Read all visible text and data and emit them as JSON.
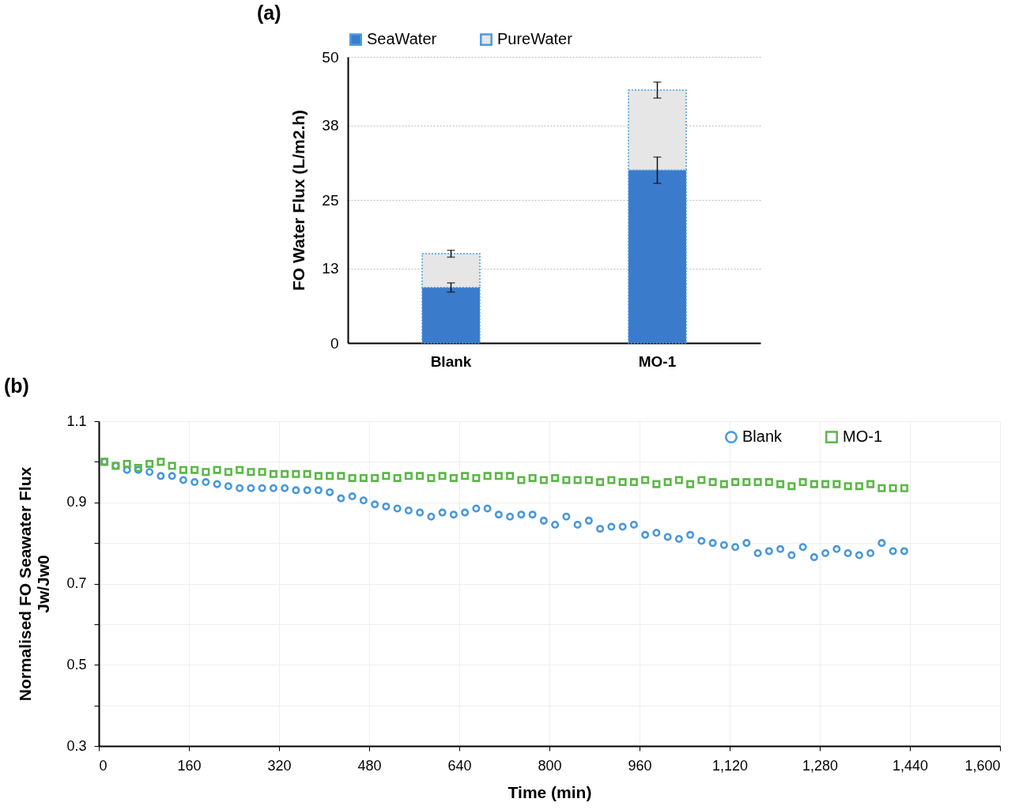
{
  "chart_data": [
    {
      "type": "bar",
      "title": "(a)",
      "ylabel": "FO Water Flux (L/m2.h)",
      "categories": [
        "Blank",
        "MO-1"
      ],
      "stacked": true,
      "legend": "top",
      "grid": "y",
      "ylim": [
        0,
        50
      ],
      "yticks": [
        0,
        13,
        25,
        38,
        50
      ],
      "series": [
        {
          "name": "SeaWater",
          "color": "#3b7bcb",
          "values": [
            9.7,
            30.2
          ],
          "errors": [
            0.8,
            2.3
          ]
        },
        {
          "name": "PureWater",
          "color": "#e6e6e6",
          "values": [
            5.9,
            14.0
          ],
          "errors": [
            0.6,
            1.4
          ]
        }
      ]
    },
    {
      "type": "scatter",
      "title": "(b)",
      "xlabel": "Time (min)",
      "ylabel": "Normalised FO Seawater Flux\nJw/Jw0",
      "legend": "top right",
      "grid": true,
      "xlim": [
        0,
        1600
      ],
      "xticks": [
        0,
        160,
        320,
        480,
        640,
        800,
        960,
        {
          "value": 1120,
          "label": "1,120"
        },
        {
          "value": 1280,
          "label": "1,280"
        },
        {
          "value": 1440,
          "label": "1,440"
        },
        {
          "value": 1600,
          "label": "1,600"
        }
      ],
      "ylim": [
        0.3,
        1.1
      ],
      "yticks": [
        0.3,
        {
          "value": 0.4,
          "label": null
        },
        0.5,
        {
          "value": 0.6,
          "label": null
        },
        0.7,
        {
          "value": 0.8,
          "label": null
        },
        0.9,
        {
          "value": 1.0,
          "label": null
        },
        1.1
      ],
      "x": [
        10,
        30,
        50,
        70,
        90,
        110,
        130,
        150,
        170,
        190,
        210,
        230,
        250,
        270,
        290,
        310,
        330,
        350,
        370,
        390,
        410,
        430,
        450,
        470,
        490,
        510,
        530,
        550,
        570,
        590,
        610,
        630,
        650,
        670,
        690,
        710,
        730,
        750,
        770,
        790,
        810,
        830,
        850,
        870,
        890,
        910,
        930,
        950,
        970,
        990,
        1010,
        1030,
        1050,
        1070,
        1090,
        1110,
        1130,
        1150,
        1170,
        1190,
        1210,
        1230,
        1250,
        1270,
        1290,
        1310,
        1330,
        1350,
        1370,
        1390,
        1410,
        1430
      ],
      "series": [
        {
          "name": "Blank",
          "color": "#4a98dc",
          "marker": "circle",
          "values": [
            1.0,
            0.99,
            0.98,
            0.98,
            0.975,
            0.965,
            0.965,
            0.955,
            0.95,
            0.95,
            0.945,
            0.94,
            0.935,
            0.935,
            0.935,
            0.935,
            0.935,
            0.93,
            0.93,
            0.93,
            0.925,
            0.91,
            0.915,
            0.905,
            0.895,
            0.89,
            0.885,
            0.88,
            0.875,
            0.865,
            0.875,
            0.87,
            0.875,
            0.885,
            0.885,
            0.87,
            0.865,
            0.87,
            0.87,
            0.855,
            0.845,
            0.865,
            0.845,
            0.855,
            0.835,
            0.84,
            0.84,
            0.845,
            0.82,
            0.825,
            0.815,
            0.81,
            0.82,
            0.805,
            0.8,
            0.795,
            0.79,
            0.8,
            0.775,
            0.78,
            0.785,
            0.77,
            0.79,
            0.765,
            0.775,
            0.785,
            0.775,
            0.77,
            0.775,
            0.8,
            0.78,
            0.78
          ]
        },
        {
          "name": "MO-1",
          "color": "#5cb748",
          "marker": "square",
          "values": [
            1.0,
            0.99,
            0.995,
            0.985,
            0.995,
            1.0,
            0.99,
            0.98,
            0.98,
            0.975,
            0.98,
            0.975,
            0.98,
            0.975,
            0.975,
            0.97,
            0.97,
            0.97,
            0.97,
            0.965,
            0.965,
            0.965,
            0.96,
            0.96,
            0.96,
            0.965,
            0.96,
            0.965,
            0.965,
            0.96,
            0.965,
            0.96,
            0.965,
            0.96,
            0.965,
            0.965,
            0.965,
            0.955,
            0.96,
            0.955,
            0.96,
            0.955,
            0.955,
            0.955,
            0.95,
            0.955,
            0.95,
            0.95,
            0.955,
            0.945,
            0.95,
            0.955,
            0.945,
            0.955,
            0.95,
            0.945,
            0.95,
            0.95,
            0.95,
            0.95,
            0.945,
            0.94,
            0.95,
            0.945,
            0.945,
            0.945,
            0.94,
            0.94,
            0.945,
            0.935,
            0.935,
            0.935
          ]
        }
      ]
    }
  ]
}
